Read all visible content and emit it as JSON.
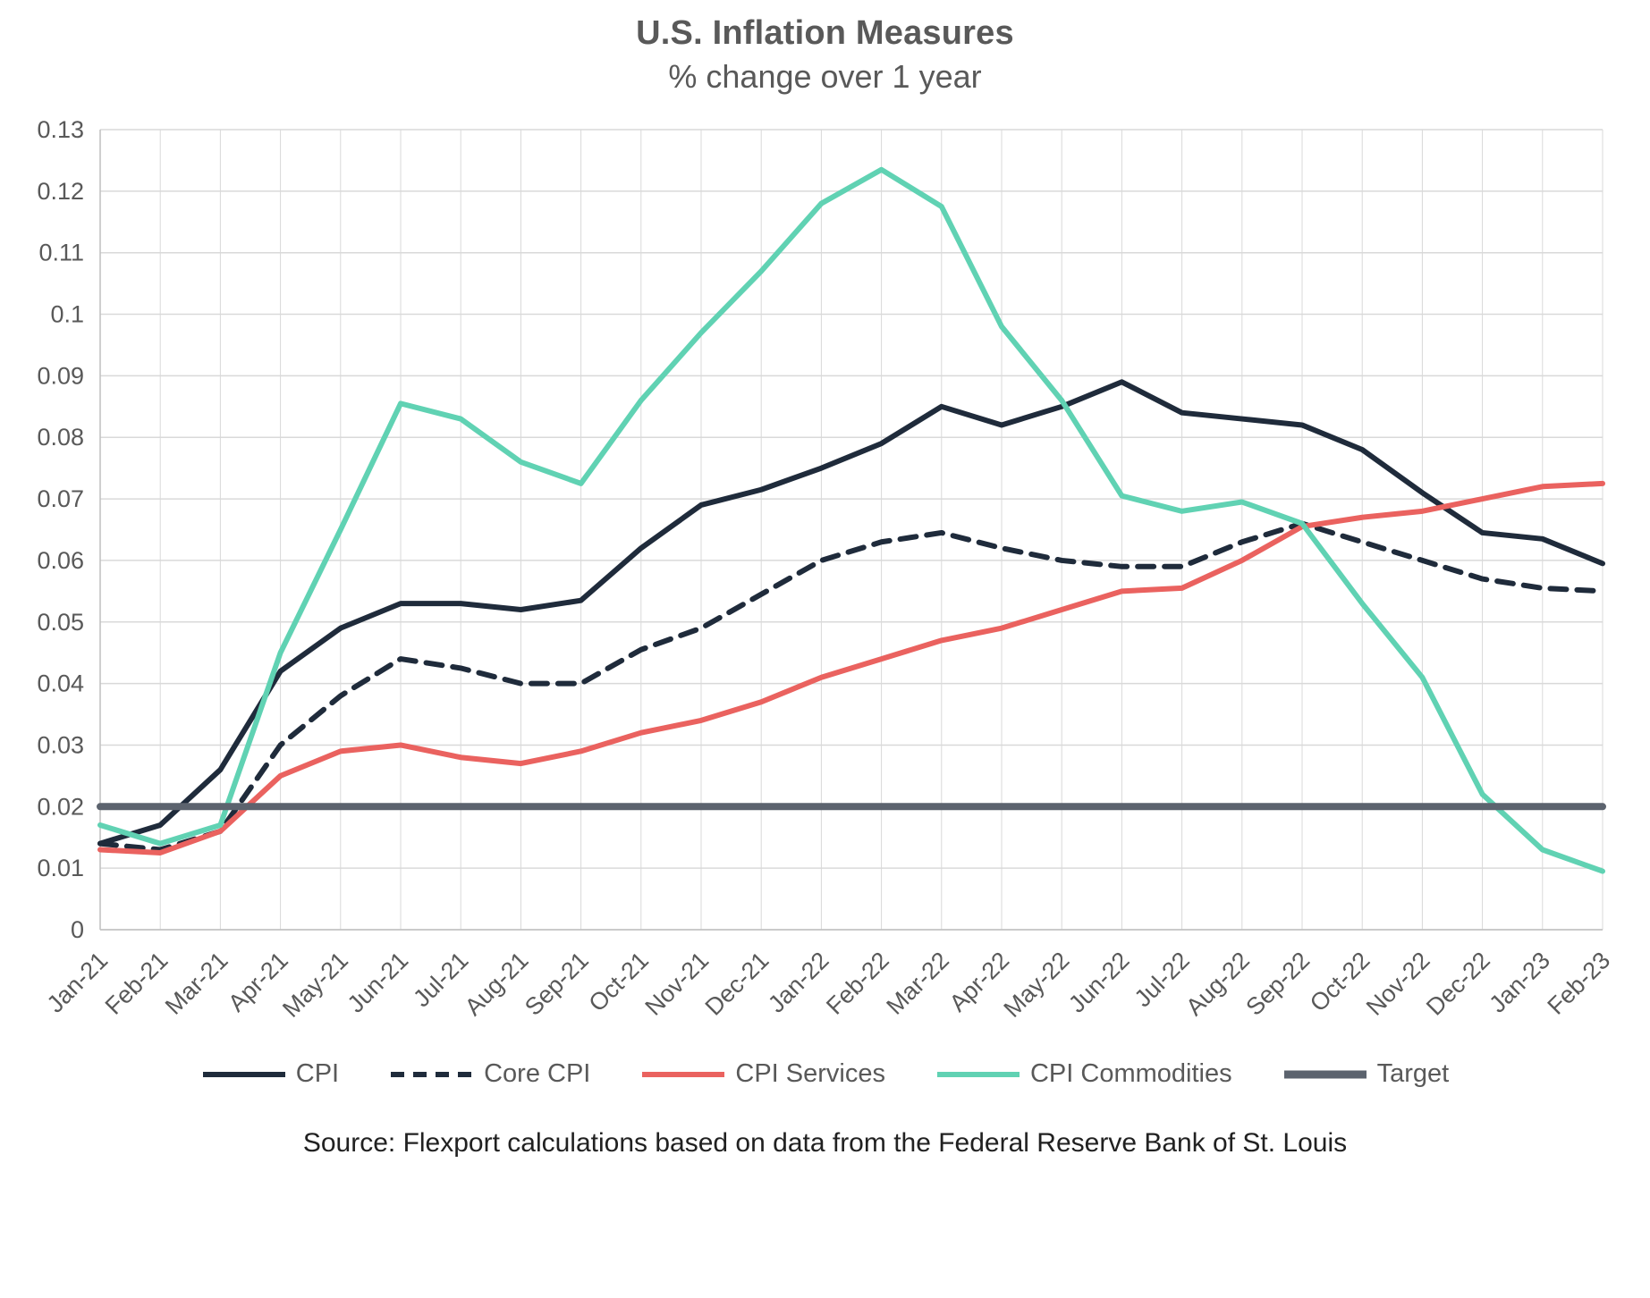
{
  "source_note": "Source: Flexport calculations based on data from the Federal Reserve Bank of St. Louis",
  "chart_data": {
    "type": "line",
    "title": "U.S. Inflation Measures",
    "subtitle": "% change over 1 year",
    "xlabel": "",
    "ylabel": "",
    "ylim": [
      0,
      0.13
    ],
    "grid": true,
    "legend_position": "bottom",
    "y_ticks": [
      "0",
      "0.01",
      "0.02",
      "0.03",
      "0.04",
      "0.05",
      "0.06",
      "0.07",
      "0.08",
      "0.09",
      "0.1",
      "0.11",
      "0.12",
      "0.13"
    ],
    "x": [
      "Jan-21",
      "Feb-21",
      "Mar-21",
      "Apr-21",
      "May-21",
      "Jun-21",
      "Jul-21",
      "Aug-21",
      "Sep-21",
      "Oct-21",
      "Nov-21",
      "Dec-21",
      "Jan-22",
      "Feb-22",
      "Mar-22",
      "Apr-22",
      "May-22",
      "Jun-22",
      "Jul-22",
      "Aug-22",
      "Sep-22",
      "Oct-22",
      "Nov-22",
      "Dec-22",
      "Jan-23",
      "Feb-23"
    ],
    "series": [
      {
        "name": "CPI",
        "color": "#1f2b3b",
        "style": "solid",
        "width": 6,
        "values": [
          0.014,
          0.017,
          0.026,
          0.042,
          0.049,
          0.053,
          0.053,
          0.052,
          0.0535,
          0.062,
          0.069,
          0.0715,
          0.075,
          0.079,
          0.085,
          0.082,
          0.085,
          0.089,
          0.084,
          0.083,
          0.082,
          0.078,
          0.071,
          0.0645,
          0.0635,
          0.0595
        ]
      },
      {
        "name": "Core CPI",
        "color": "#1f2b3b",
        "style": "dashed",
        "width": 6,
        "values": [
          0.014,
          0.013,
          0.016,
          0.03,
          0.038,
          0.044,
          0.0425,
          0.04,
          0.04,
          0.0455,
          0.049,
          0.0545,
          0.06,
          0.063,
          0.0645,
          0.062,
          0.06,
          0.059,
          0.059,
          0.063,
          0.066,
          0.063,
          0.06,
          0.057,
          0.0555,
          0.055
        ]
      },
      {
        "name": "CPI Services",
        "color": "#ea625f",
        "style": "solid",
        "width": 6,
        "values": [
          0.013,
          0.0125,
          0.016,
          0.025,
          0.029,
          0.03,
          0.028,
          0.027,
          0.029,
          0.032,
          0.034,
          0.037,
          0.041,
          0.044,
          0.047,
          0.049,
          0.052,
          0.055,
          0.0555,
          0.06,
          0.0655,
          0.067,
          0.068,
          0.07,
          0.072,
          0.0725
        ]
      },
      {
        "name": "CPI Commodities",
        "color": "#60d2b3",
        "style": "solid",
        "width": 6,
        "values": [
          0.017,
          0.014,
          0.017,
          0.045,
          0.065,
          0.0855,
          0.083,
          0.076,
          0.0725,
          0.086,
          0.097,
          0.107,
          0.118,
          0.1235,
          0.1175,
          0.098,
          0.086,
          0.0705,
          0.068,
          0.0695,
          0.066,
          0.053,
          0.041,
          0.022,
          0.013,
          0.0095
        ]
      },
      {
        "name": "Target",
        "color": "#5c636e",
        "style": "solid",
        "width": 8,
        "values": [
          0.02,
          0.02,
          0.02,
          0.02,
          0.02,
          0.02,
          0.02,
          0.02,
          0.02,
          0.02,
          0.02,
          0.02,
          0.02,
          0.02,
          0.02,
          0.02,
          0.02,
          0.02,
          0.02,
          0.02,
          0.02,
          0.02,
          0.02,
          0.02,
          0.02,
          0.02
        ]
      }
    ]
  }
}
